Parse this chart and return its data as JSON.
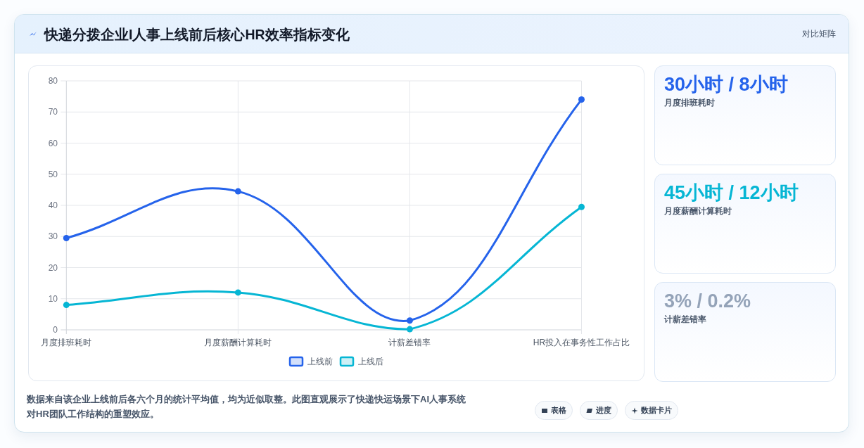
{
  "chart_data": [
    {
      "type": "line",
      "title": "快递分拨企业I人事上线前后核心HR效率指标变化",
      "categories": [
        "月度排班耗时",
        "月度薪酬计算耗时",
        "计薪差错率",
        "HR投入在事务性工作占比"
      ],
      "series": [
        {
          "name": "上线前",
          "color": "#2563eb",
          "values": [
            29.5,
            44.5,
            3,
            74
          ]
        },
        {
          "name": "上线后",
          "color": "#06b6d4",
          "values": [
            8,
            12,
            0.2,
            39.5
          ]
        }
      ],
      "ylim": [
        0,
        80
      ],
      "yticks": [
        0,
        10,
        20,
        30,
        40,
        50,
        60,
        70,
        80
      ],
      "grid": true,
      "legend": "bottom",
      "marker": "circle",
      "line_style": "solid",
      "annotations": [
        "数据来自该企业上线前后各六个月的统计平均值，均为近似取整。此图直观展示了快递快运场景下AI人事系统对HR团队工作结构的重塑效应。"
      ]
    },
    {
      "type": "other",
      "title": "对比矩阵"
    },
    {
      "type": "other",
      "title": "30小时 / 8小时",
      "subtitle": "月度排班耗时"
    },
    {
      "type": "other",
      "title": "45小时 / 12小时",
      "subtitle": "月度薪酬计算耗时"
    },
    {
      "type": "other",
      "title": "3% / 0.2%",
      "subtitle": "计薪差错率"
    },
    {
      "type": "other",
      "annotations": [
        "表格",
        "进度",
        "数据卡片"
      ]
    }
  ]
}
